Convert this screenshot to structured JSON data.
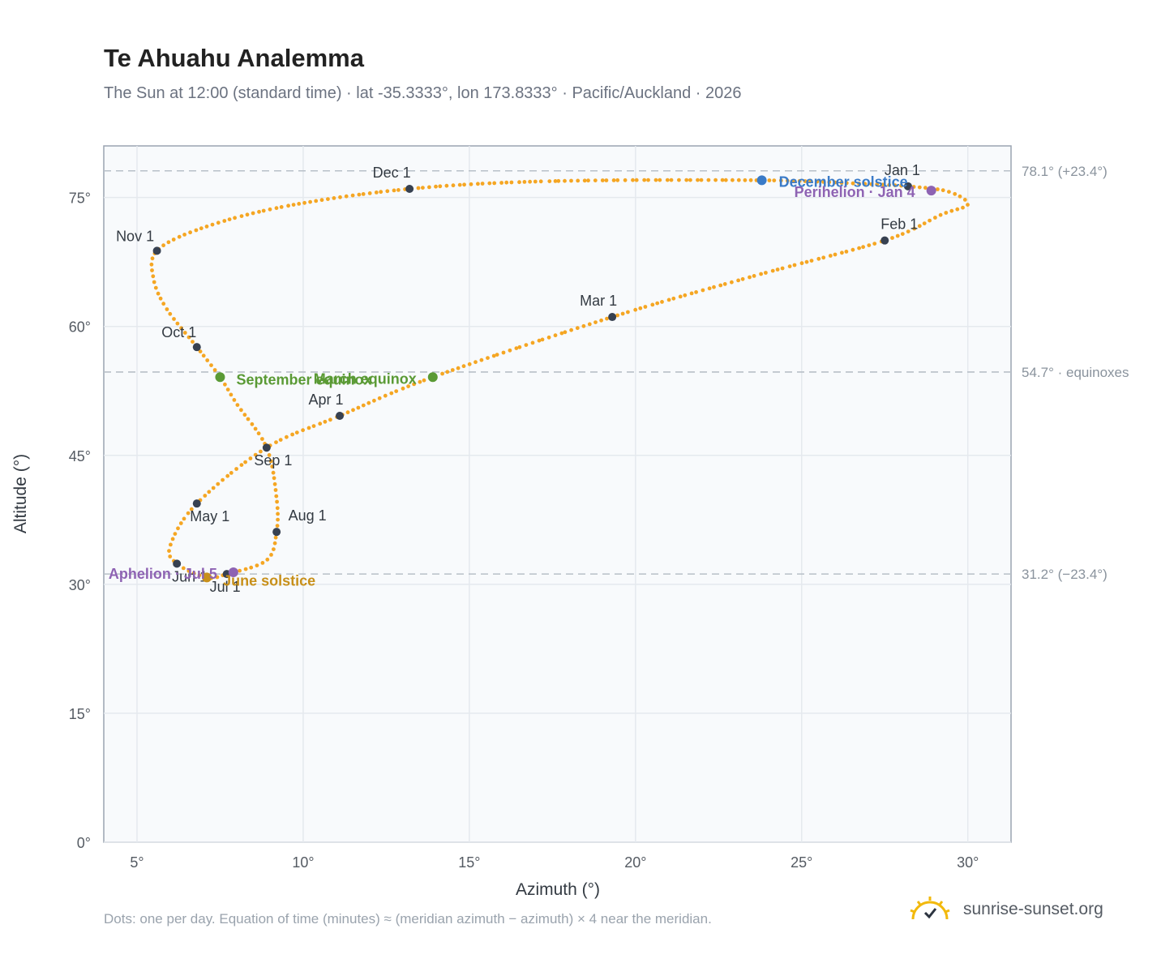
{
  "header": {
    "title": "Te Ahuahu Analemma",
    "subtitle": "The Sun at 12:00 (standard time) · lat -35.3333°, lon 173.8333° · Pacific/Auckland · 2026"
  },
  "footer": {
    "note": "Dots: one per day. Equation of time (minutes) ≈ (meridian azimuth − azimuth) × 4 near the meridian.",
    "brand": "sunrise-sunset.org"
  },
  "colors": {
    "curve": "#f5a623",
    "month_marker": "#374151",
    "equinox": "#5a9a35",
    "december_solstice": "#3a7bc8",
    "june_solstice": "#c8901a",
    "apsis": "#8e63b3",
    "plot_bg": "#f8fafc",
    "grid": "#e5e9ee",
    "reference_line": "#b8c0c8"
  },
  "chart_data": {
    "type": "scatter",
    "xlabel": "Azimuth (°)",
    "ylabel": "Altitude (°)",
    "xlim": [
      4,
      31.3
    ],
    "ylim": [
      0,
      81
    ],
    "xticks": [
      5,
      10,
      15,
      20,
      25,
      30
    ],
    "yticks": [
      0,
      15,
      30,
      45,
      60,
      75
    ],
    "xtick_labels": [
      "5°",
      "10°",
      "15°",
      "20°",
      "25°",
      "30°"
    ],
    "ytick_labels": [
      "0°",
      "15°",
      "30°",
      "45°",
      "60°",
      "75°"
    ],
    "grid": true,
    "reference_lines": [
      {
        "y": 78.1,
        "label": "78.1° (+23.4°)"
      },
      {
        "y": 54.7,
        "label": "54.7° · equinoxes"
      },
      {
        "y": 31.2,
        "label": "31.2° (−23.4°)"
      }
    ],
    "month_markers": [
      {
        "label": "Jan 1",
        "x": 28.2,
        "y": 76.3
      },
      {
        "label": "Feb 1",
        "x": 27.5,
        "y": 70.0
      },
      {
        "label": "Mar 1",
        "x": 19.3,
        "y": 61.1
      },
      {
        "label": "Apr 1",
        "x": 11.1,
        "y": 49.6
      },
      {
        "label": "May 1",
        "x": 6.8,
        "y": 39.4
      },
      {
        "label": "Jun 1",
        "x": 6.2,
        "y": 32.4
      },
      {
        "label": "Jul 1",
        "x": 7.7,
        "y": 31.2
      },
      {
        "label": "Aug 1",
        "x": 9.2,
        "y": 36.1
      },
      {
        "label": "Sep 1",
        "x": 8.9,
        "y": 45.9
      },
      {
        "label": "Oct 1",
        "x": 6.8,
        "y": 57.6
      },
      {
        "label": "Nov 1",
        "x": 5.6,
        "y": 68.8
      },
      {
        "label": "Dec 1",
        "x": 13.2,
        "y": 76.0
      }
    ],
    "events": [
      {
        "label": "December solstice",
        "x": 23.8,
        "y": 77.0,
        "kind": "december_solstice"
      },
      {
        "label": "Perihelion · Jan 4",
        "x": 28.9,
        "y": 75.8,
        "kind": "apsis"
      },
      {
        "label": "March equinox",
        "x": 13.9,
        "y": 54.1,
        "kind": "equinox"
      },
      {
        "label": "September equinox",
        "x": 7.5,
        "y": 54.1,
        "kind": "equinox"
      },
      {
        "label": "June solstice",
        "x": 7.1,
        "y": 30.8,
        "kind": "june_solstice"
      },
      {
        "label": "Aphelion · Jul 5",
        "x": 7.9,
        "y": 31.4,
        "kind": "apsis"
      }
    ],
    "daily_path": [
      [
        28.2,
        76.3
      ],
      [
        29.4,
        75.7
      ],
      [
        30.0,
        74.2
      ],
      [
        29.2,
        73.0
      ],
      [
        27.5,
        70.0
      ],
      [
        23.5,
        65.8
      ],
      [
        19.3,
        61.1
      ],
      [
        13.9,
        54.1
      ],
      [
        11.1,
        49.6
      ],
      [
        8.9,
        45.9
      ],
      [
        6.8,
        39.4
      ],
      [
        6.0,
        34.5
      ],
      [
        6.2,
        32.4
      ],
      [
        7.1,
        30.8
      ],
      [
        7.7,
        31.2
      ],
      [
        8.9,
        32.8
      ],
      [
        9.2,
        36.1
      ],
      [
        9.2,
        40.0
      ],
      [
        8.9,
        45.9
      ],
      [
        8.0,
        51.0
      ],
      [
        7.5,
        54.1
      ],
      [
        6.8,
        57.6
      ],
      [
        5.9,
        62.0
      ],
      [
        5.5,
        65.5
      ],
      [
        5.6,
        68.8
      ],
      [
        7.0,
        71.5
      ],
      [
        9.5,
        74.0
      ],
      [
        13.2,
        76.0
      ],
      [
        17.5,
        76.9
      ],
      [
        23.8,
        77.0
      ],
      [
        26.8,
        76.6
      ],
      [
        28.2,
        76.3
      ]
    ]
  }
}
